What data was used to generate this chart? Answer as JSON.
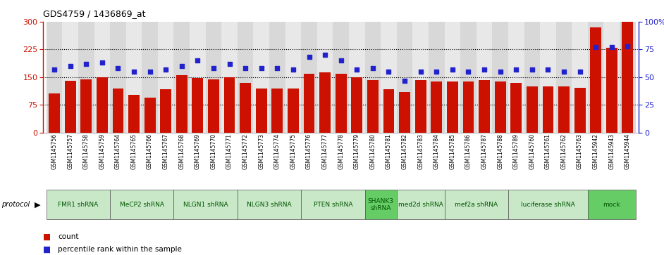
{
  "title": "GDS4759 / 1436869_at",
  "samples": [
    "GSM1145756",
    "GSM1145757",
    "GSM1145758",
    "GSM1145759",
    "GSM1145764",
    "GSM1145765",
    "GSM1145766",
    "GSM1145767",
    "GSM1145768",
    "GSM1145769",
    "GSM1145770",
    "GSM1145771",
    "GSM1145772",
    "GSM1145773",
    "GSM1145774",
    "GSM1145775",
    "GSM1145776",
    "GSM1145777",
    "GSM1145778",
    "GSM1145779",
    "GSM1145780",
    "GSM1145781",
    "GSM1145782",
    "GSM1145783",
    "GSM1145784",
    "GSM1145785",
    "GSM1145786",
    "GSM1145787",
    "GSM1145788",
    "GSM1145789",
    "GSM1145760",
    "GSM1145761",
    "GSM1145762",
    "GSM1145763",
    "GSM1145942",
    "GSM1145943",
    "GSM1145944"
  ],
  "counts": [
    105,
    140,
    143,
    150,
    120,
    103,
    95,
    118,
    155,
    148,
    143,
    150,
    135,
    120,
    120,
    120,
    160,
    162,
    160,
    150,
    142,
    118,
    110,
    142,
    138,
    138,
    138,
    142,
    138,
    135,
    125,
    125,
    125,
    122,
    285,
    230,
    300
  ],
  "percentiles": [
    57,
    60,
    62,
    63,
    58,
    55,
    55,
    57,
    60,
    65,
    58,
    62,
    58,
    58,
    58,
    57,
    68,
    70,
    65,
    57,
    58,
    55,
    47,
    55,
    55,
    57,
    55,
    57,
    55,
    57,
    57,
    57,
    55,
    55,
    77,
    77,
    78
  ],
  "groups": [
    {
      "label": "FMR1 shRNA",
      "start": 0,
      "end": 4,
      "color": "#c8e8c8"
    },
    {
      "label": "MeCP2 shRNA",
      "start": 4,
      "end": 8,
      "color": "#c8e8c8"
    },
    {
      "label": "NLGN1 shRNA",
      "start": 8,
      "end": 12,
      "color": "#c8e8c8"
    },
    {
      "label": "NLGN3 shRNA",
      "start": 12,
      "end": 16,
      "color": "#c8e8c8"
    },
    {
      "label": "PTEN shRNA",
      "start": 16,
      "end": 20,
      "color": "#c8e8c8"
    },
    {
      "label": "SHANK3\nshRNA",
      "start": 20,
      "end": 22,
      "color": "#66cc66"
    },
    {
      "label": "med2d shRNA",
      "start": 22,
      "end": 25,
      "color": "#c8e8c8"
    },
    {
      "label": "mef2a shRNA",
      "start": 25,
      "end": 29,
      "color": "#c8e8c8"
    },
    {
      "label": "luciferase shRNA",
      "start": 29,
      "end": 34,
      "color": "#c8e8c8"
    },
    {
      "label": "mock",
      "start": 34,
      "end": 37,
      "color": "#66cc66"
    }
  ],
  "bar_color": "#cc1100",
  "dot_color": "#2222cc",
  "left_ylim": [
    0,
    300
  ],
  "right_ylim": [
    0,
    100
  ],
  "left_yticks": [
    0,
    75,
    150,
    225,
    300
  ],
  "right_yticks": [
    0,
    25,
    50,
    75,
    100
  ],
  "hline_values": [
    75,
    150,
    225
  ],
  "col_bg_odd": "#d8d8d8",
  "col_bg_even": "#e8e8e8"
}
